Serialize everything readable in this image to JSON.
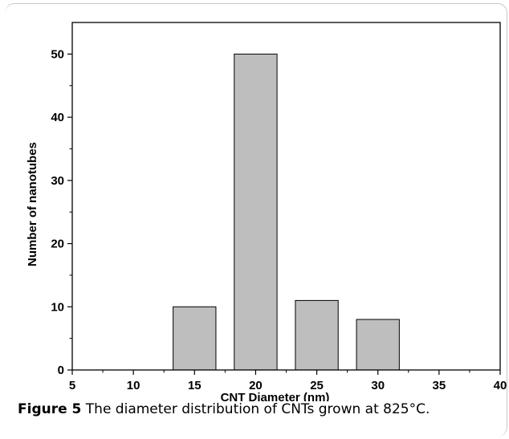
{
  "caption": {
    "label": "Figure 5",
    "text": "The diameter distribution of CNTs grown at 825°C."
  },
  "chart_data": {
    "type": "bar",
    "xlabel": "CNT Diameter (nm)",
    "ylabel": "Number of nanotubes",
    "xlim": [
      5,
      40
    ],
    "ylim": [
      0,
      55
    ],
    "x_ticks": [
      5,
      10,
      15,
      20,
      25,
      30,
      35,
      40
    ],
    "y_ticks": [
      0,
      10,
      20,
      30,
      40,
      50
    ],
    "x_minor_step": 2.5,
    "y_minor_step": 5,
    "bar_width": 3.5,
    "bar_color": "#bebebe",
    "x": [
      15,
      20,
      25,
      30
    ],
    "values": [
      10,
      50,
      11,
      8
    ],
    "grid": false,
    "legend": "none"
  }
}
